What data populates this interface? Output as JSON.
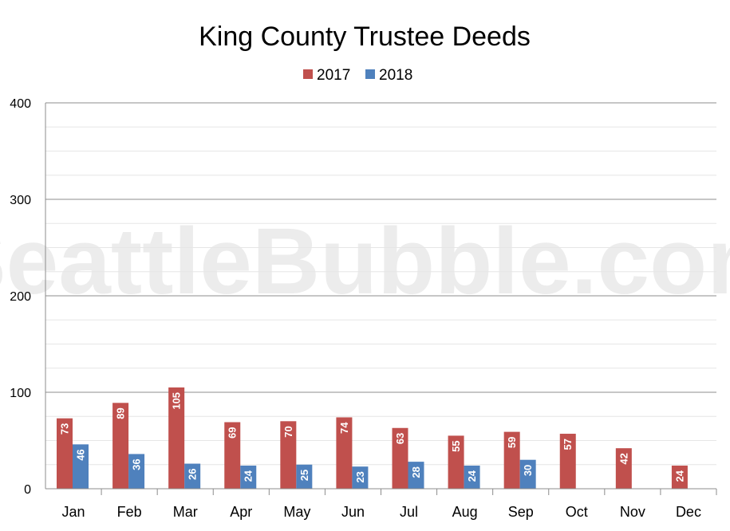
{
  "chart_data": {
    "type": "bar",
    "title": "King County Trustee Deeds",
    "categories": [
      "Jan",
      "Feb",
      "Mar",
      "Apr",
      "May",
      "Jun",
      "Jul",
      "Aug",
      "Sep",
      "Oct",
      "Nov",
      "Dec"
    ],
    "series": [
      {
        "name": "2017",
        "color": "#c0504d",
        "values": [
          73,
          89,
          105,
          69,
          70,
          74,
          63,
          55,
          59,
          57,
          42,
          24
        ]
      },
      {
        "name": "2018",
        "color": "#4f81bd",
        "values": [
          46,
          36,
          26,
          24,
          25,
          23,
          28,
          24,
          30,
          null,
          null,
          null
        ]
      }
    ],
    "ylim": [
      0,
      400
    ],
    "yticks": [
      0,
      100,
      200,
      300,
      400
    ],
    "grid": true,
    "legend_position": "top-center",
    "watermark": "SeattleBubble.com"
  }
}
